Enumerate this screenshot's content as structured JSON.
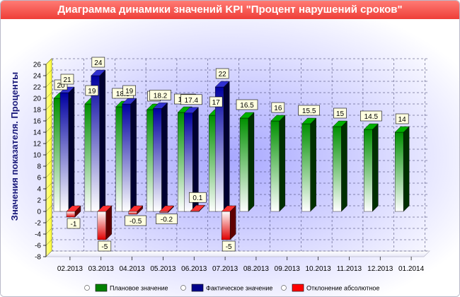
{
  "chart_data": {
    "type": "bar",
    "title": "Диаграмма динамики значений KPI \"Процент нарушений сроков\"",
    "ylabel": "Значения показателя. Проценты",
    "xlabel": "",
    "ylim": [
      -8,
      26
    ],
    "yticks": [
      -8,
      -6,
      -4,
      -2,
      0,
      2,
      4,
      6,
      8,
      10,
      12,
      14,
      16,
      18,
      20,
      22,
      24,
      26
    ],
    "grid": true,
    "legend_position": "bottom",
    "categories": [
      "02.2013",
      "03.2013",
      "04.2013",
      "05.2013",
      "06.2013",
      "07.2013",
      "08.2013",
      "09.2013",
      "10.2013",
      "11.2013",
      "12.2013",
      "01.2014"
    ],
    "series": [
      {
        "name": "Плановое значение",
        "color": "#008000",
        "values": [
          20,
          19,
          18.5,
          18,
          17.5,
          17,
          16.5,
          16,
          15.5,
          15,
          14.5,
          14
        ]
      },
      {
        "name": "Фактическое значение",
        "color": "#00008b",
        "values": [
          21,
          24,
          19,
          18.2,
          17.4,
          22,
          null,
          null,
          null,
          null,
          null,
          null
        ]
      },
      {
        "name": "Отклонение абсолютное",
        "color": "#ff0000",
        "values": [
          -1,
          -5,
          -0.5,
          -0.2,
          0.1,
          -5,
          null,
          null,
          null,
          null,
          null,
          null
        ]
      }
    ]
  }
}
